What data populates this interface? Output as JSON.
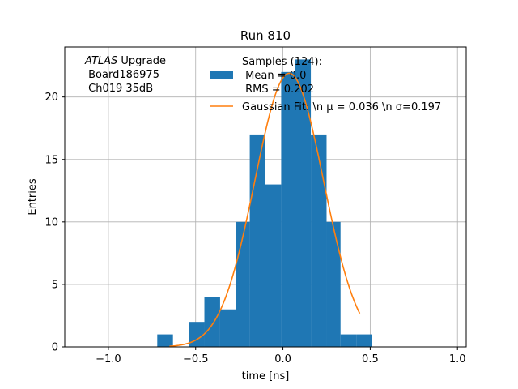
{
  "chart_data": {
    "type": "bar",
    "title": "Run 810",
    "xlabel": "time [ns]",
    "ylabel": "Entries",
    "xlim": [
      -1.25,
      1.05
    ],
    "ylim": [
      0,
      24
    ],
    "xticks": [
      -1.0,
      -0.5,
      0.0,
      0.5,
      1.0
    ],
    "xtick_labels": [
      "−1.0",
      "−0.5",
      "0.0",
      "0.5",
      "1.0"
    ],
    "yticks": [
      0,
      5,
      10,
      15,
      20
    ],
    "ytick_labels": [
      "0",
      "5",
      "10",
      "15",
      "20"
    ],
    "grid": true,
    "annotation": {
      "italic": "ATLAS",
      "rest": " Upgrade",
      "line2": " Board186975",
      "line3": " Ch019 35dB"
    },
    "histogram": {
      "name": "Samples (124):",
      "color": "#1f77b4",
      "bins": [
        {
          "x0": -0.72,
          "x1": -0.63,
          "count": 1
        },
        {
          "x0": -0.63,
          "x1": -0.54,
          "count": 0
        },
        {
          "x0": -0.54,
          "x1": -0.45,
          "count": 2
        },
        {
          "x0": -0.45,
          "x1": -0.36,
          "count": 4
        },
        {
          "x0": -0.36,
          "x1": -0.27,
          "count": 3
        },
        {
          "x0": -0.27,
          "x1": -0.19,
          "count": 10
        },
        {
          "x0": -0.19,
          "x1": -0.1,
          "count": 17
        },
        {
          "x0": -0.1,
          "x1": -0.01,
          "count": 13
        },
        {
          "x0": -0.01,
          "x1": 0.07,
          "count": 22
        },
        {
          "x0": 0.07,
          "x1": 0.16,
          "count": 23
        },
        {
          "x0": 0.16,
          "x1": 0.25,
          "count": 17
        },
        {
          "x0": 0.25,
          "x1": 0.33,
          "count": 10
        },
        {
          "x0": 0.33,
          "x1": 0.42,
          "count": 1
        },
        {
          "x0": 0.42,
          "x1": 0.51,
          "count": 1
        }
      ]
    },
    "fit": {
      "name": "Gaussian Fit: \\n μ = 0.036 \\n σ=0.197",
      "color": "#ff7f0e",
      "amplitude": 21.9,
      "mu": 0.036,
      "sigma": 0.197,
      "x_start": -0.65,
      "x_end": 0.44
    },
    "legend": {
      "location": "top-center",
      "entries": [
        {
          "series": "histogram",
          "lines": [
            "Samples (124):",
            " Mean = 0.0",
            " RMS = 0.202"
          ]
        },
        {
          "series": "fit",
          "lines": [
            "Gaussian Fit: \\n μ = 0.036 \\n σ=0.197"
          ]
        }
      ]
    }
  }
}
